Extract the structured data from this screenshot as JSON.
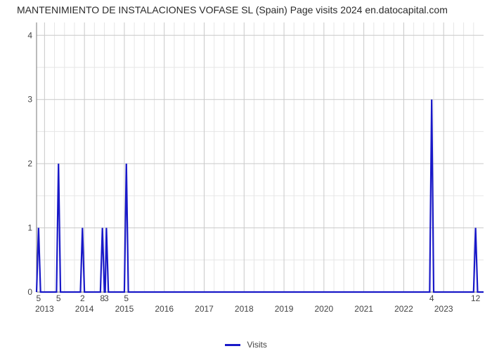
{
  "title": "MANTENIMIENTO DE INSTALACIONES VOFASE SL (Spain) Page visits 2024 en.datocapital.com",
  "chart": {
    "type": "line",
    "background_color": "#ffffff",
    "grid_major_color": "#c9c9c9",
    "grid_minor_color": "#e6e6e6",
    "axis_color": "#777777",
    "series_color": "#1919c8",
    "series_line_width": 2.2,
    "y": {
      "min": 0,
      "max": 4.2,
      "tick_step": 1,
      "ticks": [
        0,
        1,
        2,
        3,
        4
      ]
    },
    "x": {
      "min": 2012.8,
      "max": 2024.0,
      "year_ticks": [
        2013,
        2014,
        2015,
        2016,
        2017,
        2018,
        2019,
        2020,
        2021,
        2022,
        2023
      ],
      "minor_count_between": 3
    },
    "data_labels": [
      {
        "x": 2012.85,
        "label": "5"
      },
      {
        "x": 2013.35,
        "label": "5"
      },
      {
        "x": 2013.95,
        "label": "2"
      },
      {
        "x": 2014.45,
        "label": "8"
      },
      {
        "x": 2014.55,
        "label": "3"
      },
      {
        "x": 2015.05,
        "label": "5"
      },
      {
        "x": 2022.7,
        "label": "4"
      },
      {
        "x": 2023.8,
        "label": "12"
      }
    ],
    "series": [
      {
        "x": 2012.8,
        "y": 0
      },
      {
        "x": 2012.85,
        "y": 1
      },
      {
        "x": 2012.9,
        "y": 0
      },
      {
        "x": 2013.3,
        "y": 0
      },
      {
        "x": 2013.35,
        "y": 2
      },
      {
        "x": 2013.4,
        "y": 0
      },
      {
        "x": 2013.9,
        "y": 0
      },
      {
        "x": 2013.95,
        "y": 1
      },
      {
        "x": 2014.0,
        "y": 0
      },
      {
        "x": 2014.4,
        "y": 0
      },
      {
        "x": 2014.45,
        "y": 1
      },
      {
        "x": 2014.5,
        "y": 0
      },
      {
        "x": 2014.52,
        "y": 0
      },
      {
        "x": 2014.55,
        "y": 1
      },
      {
        "x": 2014.6,
        "y": 0
      },
      {
        "x": 2015.0,
        "y": 0
      },
      {
        "x": 2015.05,
        "y": 2
      },
      {
        "x": 2015.1,
        "y": 0
      },
      {
        "x": 2022.65,
        "y": 0
      },
      {
        "x": 2022.7,
        "y": 3
      },
      {
        "x": 2022.75,
        "y": 0
      },
      {
        "x": 2023.75,
        "y": 0
      },
      {
        "x": 2023.8,
        "y": 1
      },
      {
        "x": 2023.85,
        "y": 0
      },
      {
        "x": 2024.0,
        "y": 0
      }
    ]
  },
  "legend": {
    "label": "Visits",
    "color": "#1919c8"
  }
}
